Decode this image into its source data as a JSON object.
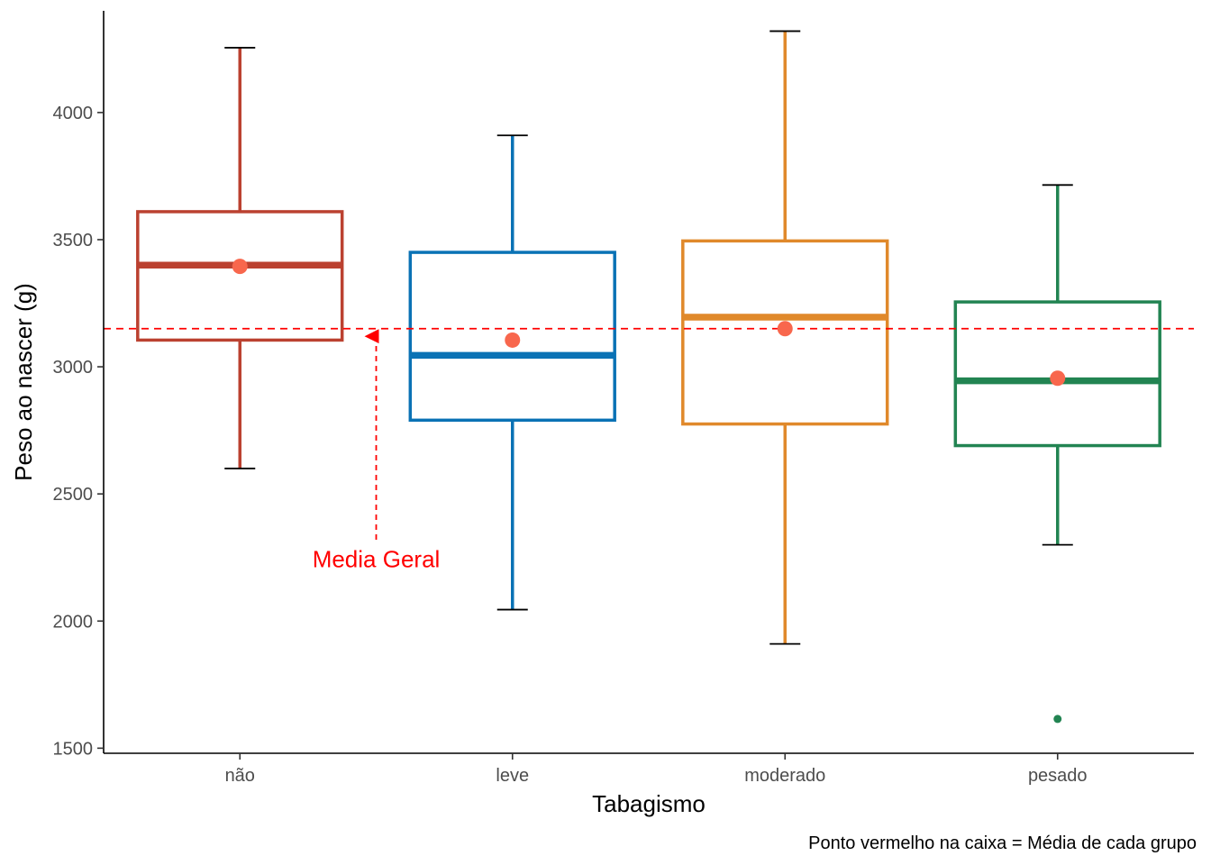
{
  "chart_data": {
    "type": "box",
    "xlabel": "Tabagismo",
    "ylabel": "Peso ao nascer (g)",
    "caption": "Ponto vermelho na caixa = Média de cada grupo",
    "ylim": [
      1480,
      4400
    ],
    "yticks": [
      1500,
      2000,
      2500,
      3000,
      3500,
      4000
    ],
    "grid": false,
    "legend": "none",
    "mean_color": "#f8674d",
    "reference_line": {
      "value": 3150,
      "color": "#ff0000",
      "style": "dashed"
    },
    "annotation": {
      "text": "Media Geral",
      "color": "#ff0000",
      "x_between": [
        "não",
        "leve"
      ],
      "text_y": 2240,
      "arrow_from": 2320,
      "arrow_to": 3120
    },
    "categories": [
      "não",
      "leve",
      "moderado",
      "pesado"
    ],
    "groups": [
      {
        "category": "não",
        "color": "#bb4130",
        "whisker_low": 2600,
        "q1": 3105,
        "median": 3400,
        "q3": 3610,
        "whisker_high": 4255,
        "mean": 3395,
        "outliers": []
      },
      {
        "category": "leve",
        "color": "#0a72b5",
        "whisker_low": 2045,
        "q1": 2790,
        "median": 3045,
        "q3": 3450,
        "whisker_high": 3910,
        "mean": 3105,
        "outliers": []
      },
      {
        "category": "moderado",
        "color": "#e0892b",
        "whisker_low": 1910,
        "q1": 2775,
        "median": 3195,
        "q3": 3495,
        "whisker_high": 4320,
        "mean": 3150,
        "outliers": []
      },
      {
        "category": "pesado",
        "color": "#228452",
        "whisker_low": 2300,
        "q1": 2690,
        "median": 2945,
        "q3": 3255,
        "whisker_high": 3715,
        "mean": 2955,
        "outliers": [
          1615
        ]
      }
    ]
  }
}
